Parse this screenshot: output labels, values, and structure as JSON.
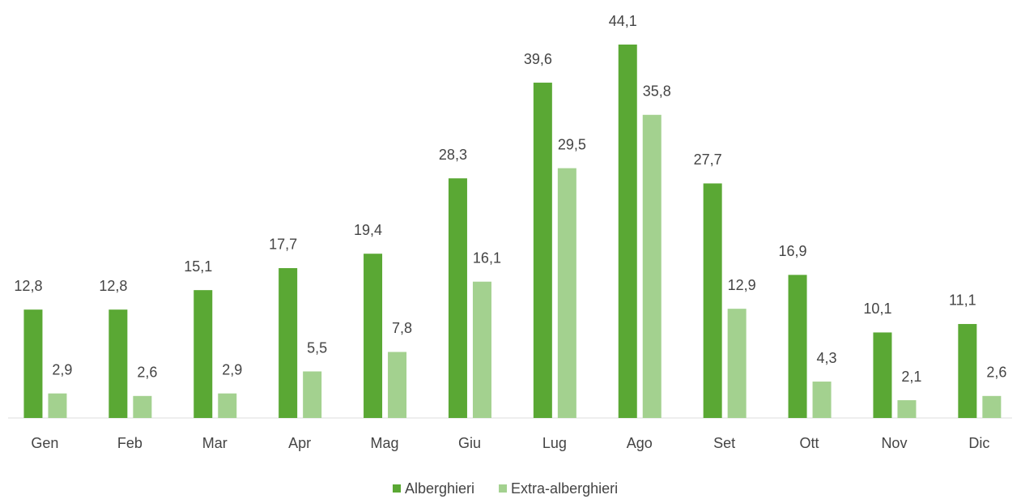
{
  "chart_data": {
    "type": "bar",
    "categories": [
      "Gen",
      "Feb",
      "Mar",
      "Apr",
      "Mag",
      "Giu",
      "Lug",
      "Ago",
      "Set",
      "Ott",
      "Nov",
      "Dic"
    ],
    "series": [
      {
        "name": "Alberghieri",
        "color": "#5aa834",
        "values": [
          12.8,
          12.8,
          15.1,
          17.7,
          19.4,
          28.3,
          39.6,
          44.1,
          27.7,
          16.9,
          10.1,
          11.1
        ],
        "value_labels": [
          "12,8",
          "12,8",
          "15,1",
          "17,7",
          "19,4",
          "28,3",
          "39,6",
          "44,1",
          "27,7",
          "16,9",
          "10,1",
          "11,1"
        ]
      },
      {
        "name": "Extra-alberghieri",
        "color": "#a3d18f",
        "values": [
          2.9,
          2.6,
          2.9,
          5.5,
          7.8,
          16.1,
          29.5,
          35.8,
          12.9,
          4.3,
          2.1,
          2.6
        ],
        "value_labels": [
          "2,9",
          "2,6",
          "2,9",
          "5,5",
          "7,8",
          "16,1",
          "29,5",
          "35,8",
          "12,9",
          "4,3",
          "2,1",
          "2,6"
        ]
      }
    ],
    "legend": "bottom"
  }
}
